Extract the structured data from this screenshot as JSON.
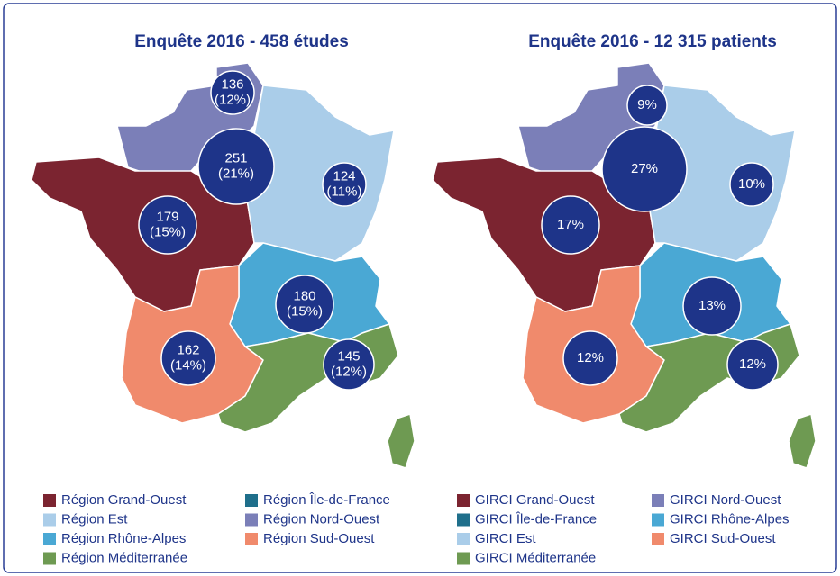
{
  "maps": [
    {
      "title": "Enquête 2016 - 458 études",
      "bubbles": [
        {
          "lines": [
            "136",
            "(12%)"
          ]
        },
        {
          "lines": [
            "251",
            "(21%)"
          ]
        },
        {
          "lines": [
            "124",
            "(11%)"
          ]
        },
        {
          "lines": [
            "179",
            "(15%)"
          ]
        },
        {
          "lines": [
            "180",
            "(15%)"
          ]
        },
        {
          "lines": [
            "162",
            "(14%)"
          ]
        },
        {
          "lines": [
            "145",
            "(12%)"
          ]
        }
      ],
      "legend": [
        {
          "name": "Région Grand-Ouest",
          "color": "#7b2430"
        },
        {
          "name": "Région Île-de-France",
          "color": "#1f6f8b"
        },
        {
          "name": "Région Est",
          "color": "#aacde9"
        },
        {
          "name": "Région Nord-Ouest",
          "color": "#7b7fb8"
        },
        {
          "name": "Région Rhône-Alpes",
          "color": "#4aa8d4"
        },
        {
          "name": "Région Sud-Ouest",
          "color": "#f08a6c"
        },
        {
          "name": "Région Méditerranée",
          "color": "#6e9a52"
        }
      ]
    },
    {
      "title": "Enquête 2016 - 12 315 patients",
      "bubbles": [
        {
          "lines": [
            "9%"
          ]
        },
        {
          "lines": [
            "27%"
          ]
        },
        {
          "lines": [
            "10%"
          ]
        },
        {
          "lines": [
            "17%"
          ]
        },
        {
          "lines": [
            "13%"
          ]
        },
        {
          "lines": [
            "12%"
          ]
        },
        {
          "lines": [
            "12%"
          ]
        }
      ],
      "legend": [
        {
          "name": "GIRCI Grand-Ouest",
          "color": "#7b2430"
        },
        {
          "name": "GIRCI Nord-Ouest",
          "color": "#7b7fb8"
        },
        {
          "name": "GIRCI Île-de-France",
          "color": "#1f6f8b"
        },
        {
          "name": "GIRCI Rhône-Alpes",
          "color": "#4aa8d4"
        },
        {
          "name": "GIRCI Est",
          "color": "#aacde9"
        },
        {
          "name": "GIRCI Sud-Ouest",
          "color": "#f08a6c"
        },
        {
          "name": "GIRCI Méditerranée",
          "color": "#6e9a52"
        }
      ]
    }
  ]
}
